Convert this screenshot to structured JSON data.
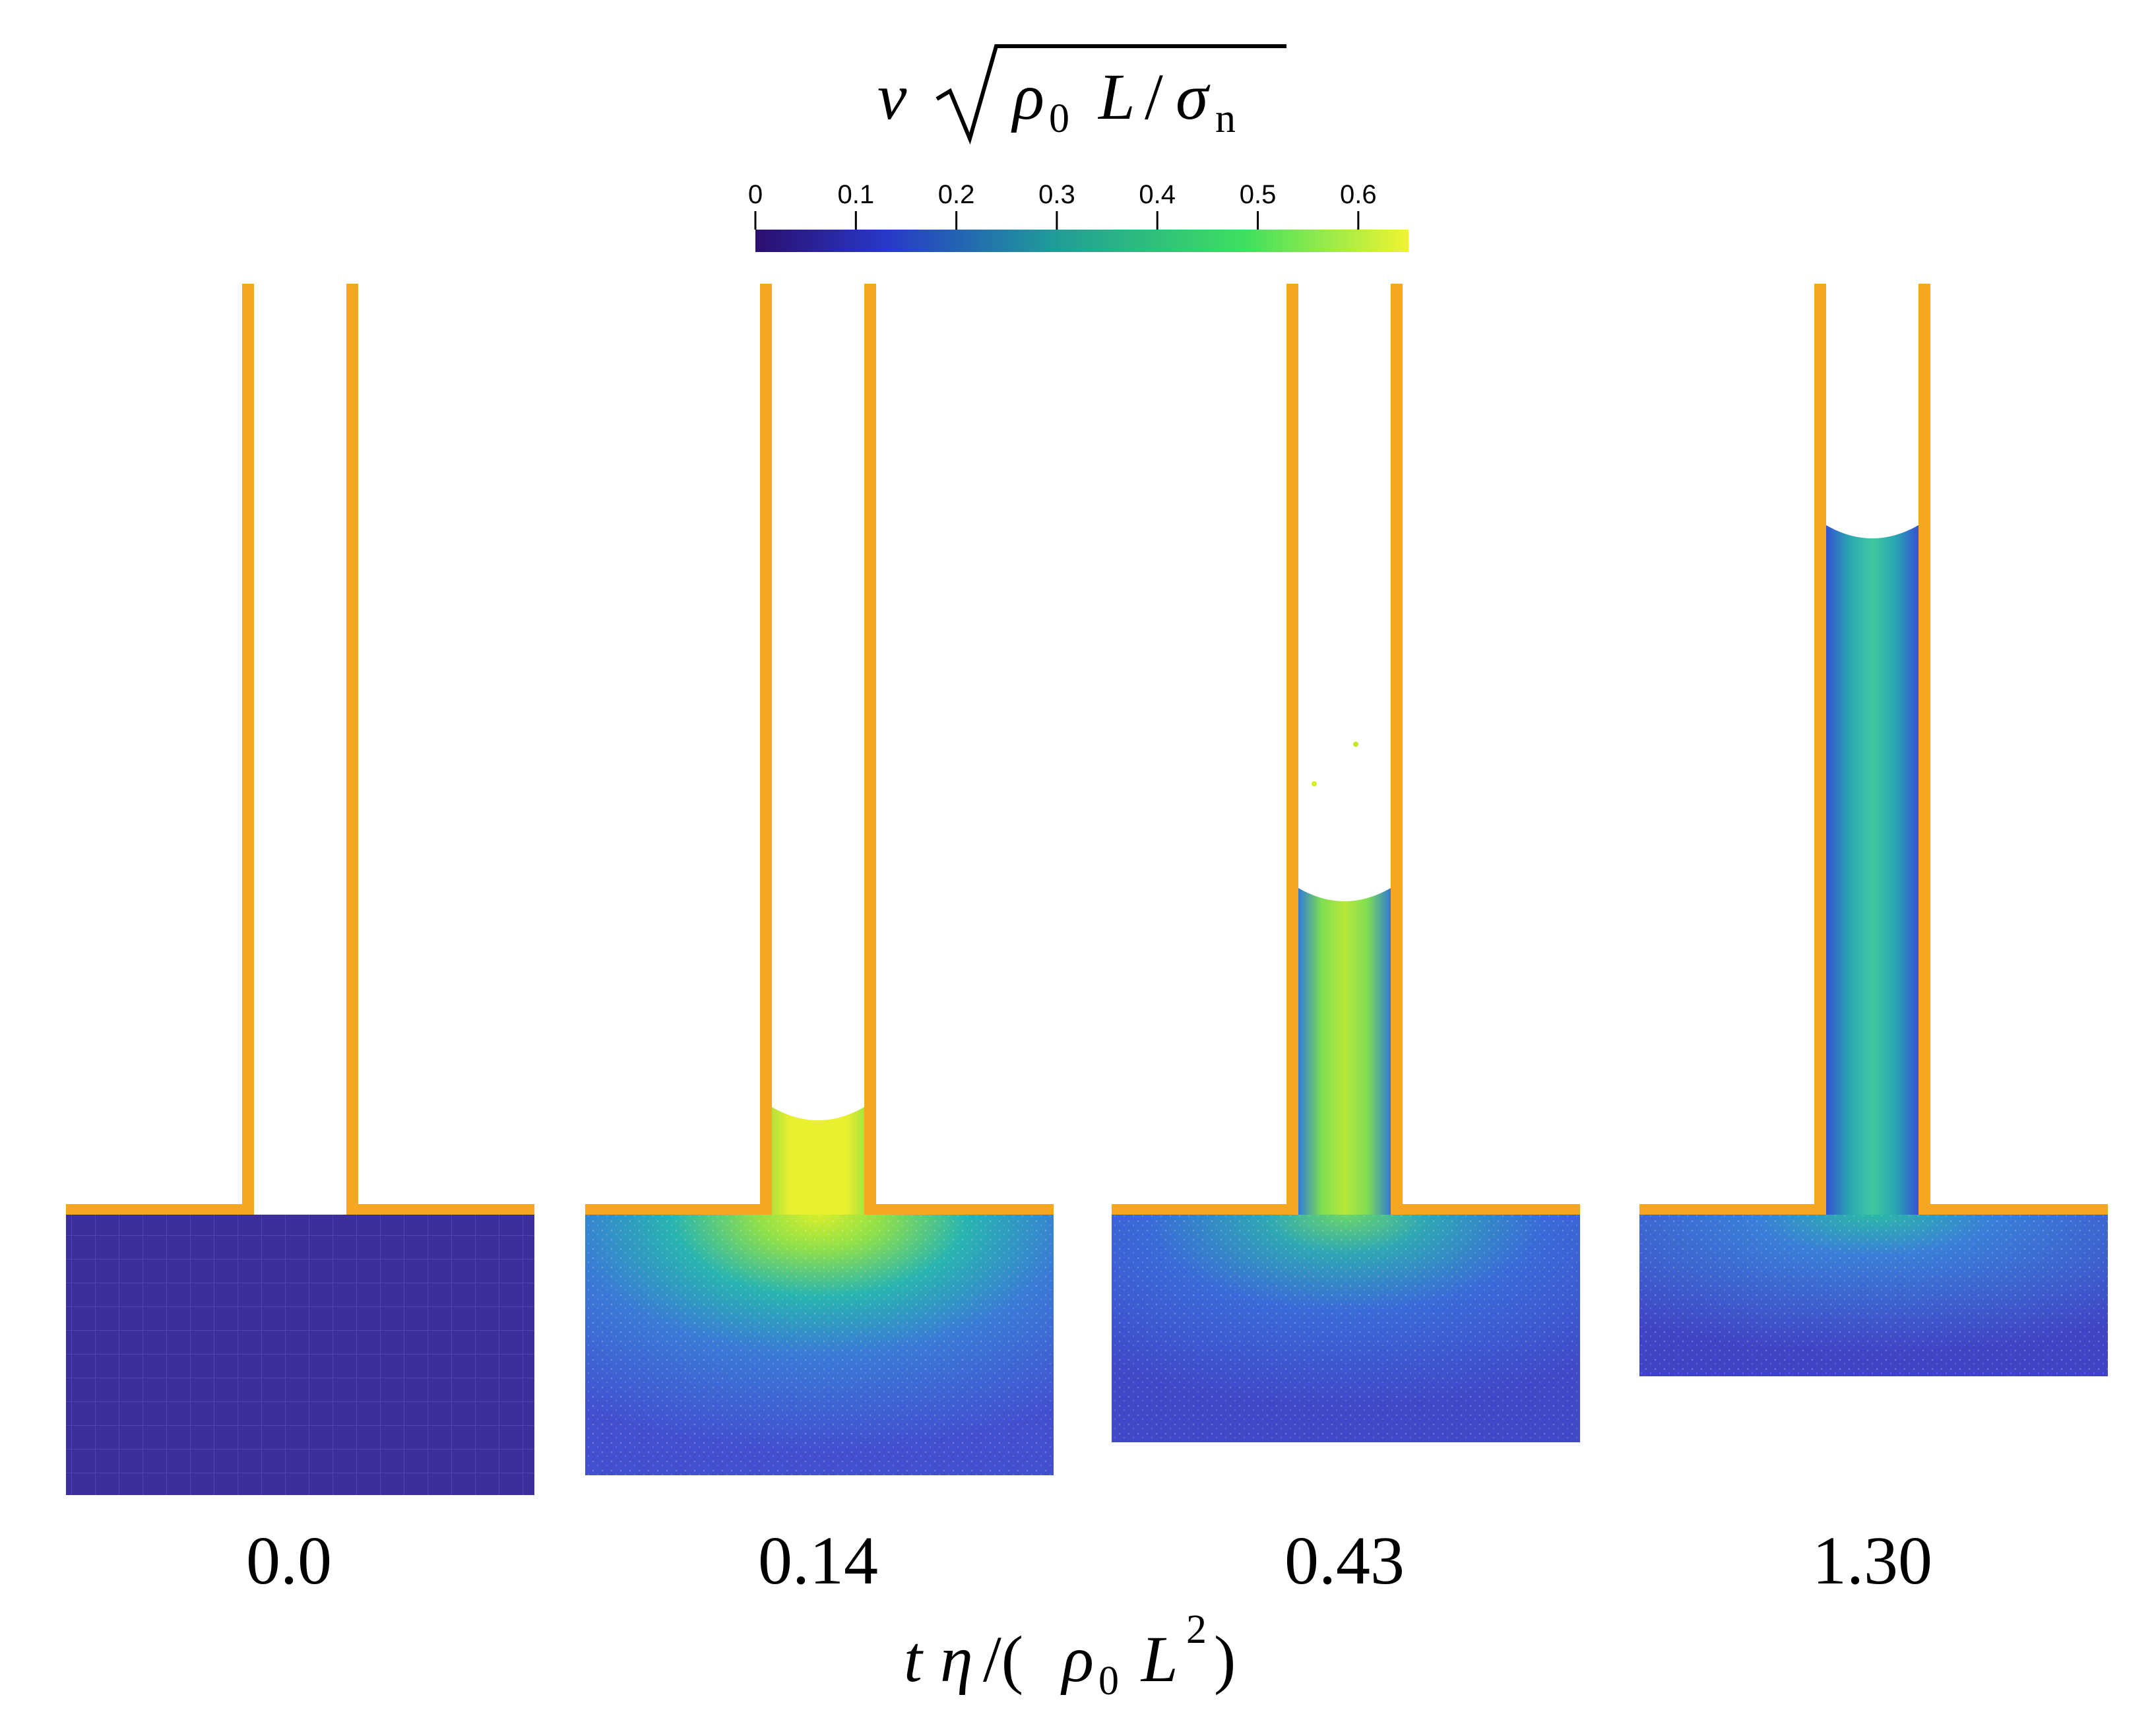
{
  "colorbar": {
    "title_v": "v",
    "title_rho": "ρ",
    "title_rho_sub": "0",
    "title_L": "L",
    "title_sigma": "σ",
    "title_sigma_sub": "n",
    "ticks": [
      "0",
      "0.1",
      "0.2",
      "0.3",
      "0.4",
      "0.5",
      "0.6"
    ],
    "tick_values": [
      0,
      0.1,
      0.2,
      0.3,
      0.4,
      0.5,
      0.6
    ],
    "range": [
      0,
      0.65
    ],
    "colormap": "viridis",
    "stops": [
      "#440154",
      "#3b528b",
      "#21918c",
      "#5ec962",
      "#fde725"
    ]
  },
  "colors": {
    "wall": "#f5a623",
    "fluid_base": "#3b3b9a",
    "fluid_low": "#4a4cc8",
    "fluid_mid": "#2fb0a0",
    "fluid_high": "#c8e82a"
  },
  "panels": [
    {
      "time": "0.0",
      "rise_fraction": 0.0,
      "peak_speed": 0.05
    },
    {
      "time": "0.14",
      "rise_fraction": 0.11,
      "peak_speed": 0.63
    },
    {
      "time": "0.43",
      "rise_fraction": 0.34,
      "peak_speed": 0.55
    },
    {
      "time": "1.30",
      "rise_fraction": 0.73,
      "peak_speed": 0.38
    }
  ],
  "xaxis": {
    "t": "t",
    "eta": "η",
    "slash": "/(",
    "rho": "ρ",
    "rho_sub": "0",
    "L": "L",
    "sup": "2",
    "close": ")"
  }
}
